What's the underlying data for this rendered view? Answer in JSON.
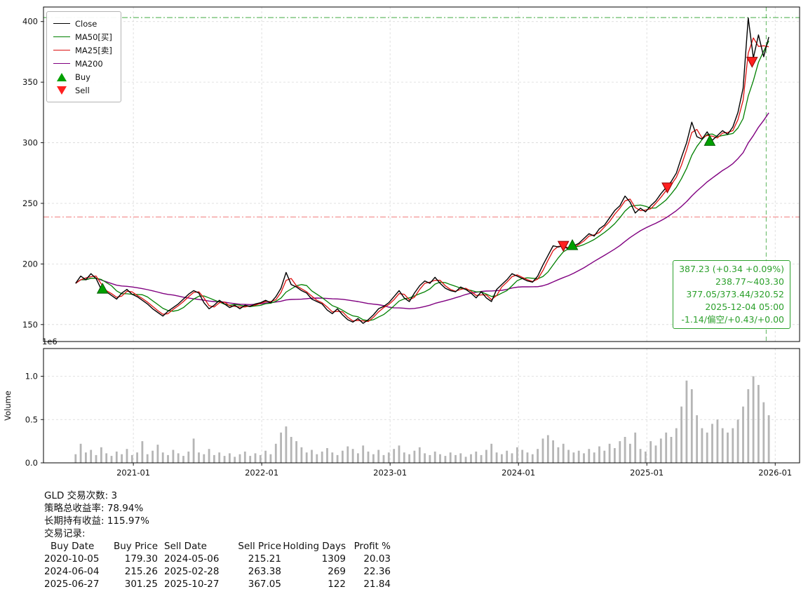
{
  "chart_data": {
    "type": "line",
    "title": "",
    "xlim": [
      2020.3,
      2026.19
    ],
    "xticks": [
      {
        "x": 2021.0,
        "label": "2021-01"
      },
      {
        "x": 2022.0,
        "label": "2022-01"
      },
      {
        "x": 2023.0,
        "label": "2023-01"
      },
      {
        "x": 2024.0,
        "label": "2024-01"
      },
      {
        "x": 2025.0,
        "label": "2025-01"
      },
      {
        "x": 2026.0,
        "label": "2026-01"
      }
    ],
    "price_panel": {
      "ylim": [
        136,
        412
      ],
      "yticks": [
        150,
        200,
        250,
        300,
        350,
        400
      ],
      "hlines": [
        {
          "value": 403.3,
          "color": "rgba(44,160,44,0.8)",
          "dash": "8 3 2 3"
        },
        {
          "value": 238.77,
          "color": "rgba(235,70,70,0.7)",
          "dash": "8 3 2 3"
        }
      ],
      "vline": {
        "x": 2025.93,
        "color": "rgba(44,160,44,0.7)",
        "dash": "6 4"
      }
    },
    "volume_panel": {
      "ylim": [
        0,
        1.32
      ],
      "yticks": [
        0.0,
        0.5,
        1.0
      ],
      "ylabel": "Volume",
      "offset_label": "1e6"
    },
    "colors": {
      "close": "#000000",
      "ma50": "#008000",
      "ma25": "#dd1111",
      "ma200": "#800080",
      "buy": "#00a000",
      "sell": "#ff2020"
    },
    "smoothing_windows": {
      "ma25": 2,
      "ma50": 5,
      "ma200": 20
    },
    "x": [
      2020.55,
      2020.59,
      2020.63,
      2020.67,
      2020.71,
      2020.75,
      2020.79,
      2020.83,
      2020.87,
      2020.91,
      2020.95,
      2020.99,
      2021.03,
      2021.07,
      2021.11,
      2021.15,
      2021.19,
      2021.23,
      2021.27,
      2021.31,
      2021.35,
      2021.39,
      2021.43,
      2021.47,
      2021.51,
      2021.55,
      2021.59,
      2021.63,
      2021.67,
      2021.71,
      2021.75,
      2021.79,
      2021.83,
      2021.87,
      2021.91,
      2021.95,
      2021.99,
      2022.03,
      2022.07,
      2022.11,
      2022.15,
      2022.19,
      2022.23,
      2022.27,
      2022.31,
      2022.35,
      2022.39,
      2022.43,
      2022.47,
      2022.51,
      2022.55,
      2022.59,
      2022.63,
      2022.67,
      2022.71,
      2022.75,
      2022.79,
      2022.83,
      2022.87,
      2022.91,
      2022.95,
      2022.99,
      2023.03,
      2023.07,
      2023.11,
      2023.15,
      2023.19,
      2023.23,
      2023.27,
      2023.31,
      2023.35,
      2023.39,
      2023.43,
      2023.47,
      2023.51,
      2023.55,
      2023.59,
      2023.63,
      2023.67,
      2023.71,
      2023.75,
      2023.79,
      2023.83,
      2023.87,
      2023.91,
      2023.95,
      2023.99,
      2024.03,
      2024.07,
      2024.11,
      2024.15,
      2024.19,
      2024.23,
      2024.27,
      2024.31,
      2024.35,
      2024.39,
      2024.43,
      2024.47,
      2024.51,
      2024.55,
      2024.59,
      2024.63,
      2024.67,
      2024.71,
      2024.75,
      2024.79,
      2024.83,
      2024.87,
      2024.91,
      2024.95,
      2024.99,
      2025.03,
      2025.07,
      2025.11,
      2025.15,
      2025.19,
      2025.23,
      2025.27,
      2025.31,
      2025.35,
      2025.39,
      2025.43,
      2025.47,
      2025.51,
      2025.55,
      2025.59,
      2025.63,
      2025.67,
      2025.71,
      2025.75,
      2025.79,
      2025.83,
      2025.87,
      2025.91,
      2025.95
    ],
    "close": [
      184,
      190,
      187,
      192,
      188,
      179,
      177,
      174,
      171,
      176,
      179,
      175,
      173,
      170,
      167,
      163,
      160,
      157,
      161,
      164,
      167,
      171,
      175,
      178,
      176,
      168,
      163,
      166,
      170,
      167,
      164,
      166,
      163,
      166,
      165,
      167,
      168,
      170,
      168,
      173,
      180,
      193,
      183,
      181,
      178,
      176,
      171,
      169,
      167,
      162,
      159,
      163,
      158,
      154,
      152,
      155,
      151,
      154,
      158,
      163,
      165,
      168,
      173,
      178,
      172,
      169,
      176,
      182,
      186,
      184,
      189,
      184,
      180,
      178,
      177,
      181,
      179,
      176,
      172,
      177,
      172,
      169,
      179,
      183,
      187,
      192,
      190,
      188,
      186,
      185,
      190,
      199,
      207,
      215,
      214,
      215,
      212,
      215,
      217,
      221,
      225,
      223,
      229,
      232,
      238,
      244,
      248,
      256,
      251,
      242,
      246,
      243,
      248,
      252,
      258,
      263,
      268,
      275,
      288,
      300,
      317,
      305,
      303,
      309,
      302,
      306,
      310,
      307,
      313,
      325,
      345,
      403,
      370,
      389,
      371,
      387.23
    ],
    "volume": [
      0.1,
      0.22,
      0.12,
      0.15,
      0.09,
      0.18,
      0.11,
      0.08,
      0.13,
      0.1,
      0.16,
      0.09,
      0.12,
      0.25,
      0.1,
      0.14,
      0.21,
      0.12,
      0.09,
      0.15,
      0.11,
      0.08,
      0.13,
      0.28,
      0.12,
      0.1,
      0.16,
      0.09,
      0.12,
      0.08,
      0.11,
      0.07,
      0.1,
      0.13,
      0.08,
      0.11,
      0.09,
      0.14,
      0.1,
      0.22,
      0.35,
      0.42,
      0.3,
      0.25,
      0.18,
      0.12,
      0.15,
      0.1,
      0.13,
      0.17,
      0.12,
      0.09,
      0.14,
      0.19,
      0.16,
      0.11,
      0.2,
      0.13,
      0.1,
      0.15,
      0.09,
      0.12,
      0.16,
      0.2,
      0.12,
      0.1,
      0.14,
      0.18,
      0.11,
      0.09,
      0.13,
      0.1,
      0.08,
      0.12,
      0.09,
      0.11,
      0.07,
      0.1,
      0.13,
      0.09,
      0.15,
      0.22,
      0.12,
      0.1,
      0.14,
      0.11,
      0.18,
      0.15,
      0.12,
      0.1,
      0.16,
      0.28,
      0.32,
      0.26,
      0.18,
      0.22,
      0.15,
      0.12,
      0.14,
      0.11,
      0.16,
      0.12,
      0.19,
      0.14,
      0.22,
      0.17,
      0.25,
      0.3,
      0.22,
      0.35,
      0.16,
      0.13,
      0.25,
      0.2,
      0.28,
      0.35,
      0.3,
      0.4,
      0.65,
      0.95,
      0.85,
      0.55,
      0.4,
      0.35,
      0.45,
      0.5,
      0.4,
      0.35,
      0.4,
      0.5,
      0.65,
      0.85,
      1.0,
      0.9,
      0.7,
      0.55
    ],
    "buy_markers": [
      {
        "x": 2020.76,
        "y": 179.3,
        "date": "2020-10-05"
      },
      {
        "x": 2024.42,
        "y": 215.26,
        "date": "2024-06-04"
      },
      {
        "x": 2025.49,
        "y": 301.25,
        "date": "2025-06-27"
      }
    ],
    "sell_markers": [
      {
        "x": 2024.35,
        "y": 215.21,
        "date": "2024-05-06"
      },
      {
        "x": 2025.16,
        "y": 263.38,
        "date": "2025-02-28"
      },
      {
        "x": 2025.82,
        "y": 367.05,
        "date": "2025-10-27"
      }
    ]
  },
  "legend": {
    "items": [
      {
        "label": "Close",
        "type": "line",
        "color": "#000000"
      },
      {
        "label": "MA50[买]",
        "type": "line",
        "color": "#008000"
      },
      {
        "label": "MA25[卖]",
        "type": "line",
        "color": "#dd1111"
      },
      {
        "label": "MA200",
        "type": "line",
        "color": "#800080"
      },
      {
        "label": "Buy",
        "type": "triangle-up",
        "color": "#00a000"
      },
      {
        "label": "Sell",
        "type": "triangle-down",
        "color": "#ff2020"
      }
    ]
  },
  "annotation": {
    "color": "#2ca02c",
    "lines": [
      "387.23 (+0.34 +0.09%)",
      "238.77~403.30",
      "377.05/373.44/320.52",
      "2025-12-04 05:00",
      "-1.14/偏空/+0.43/+0.00"
    ]
  },
  "footer": {
    "lines": [
      "GLD 交易次数: 3",
      "策略总收益率: 78.94%",
      "长期持有收益: 115.97%",
      "交易记录:"
    ],
    "table": {
      "headers": [
        "Buy Date",
        "Buy Price",
        "Sell Date",
        "Sell Price",
        "Holding Days",
        "Profit %"
      ],
      "rows": [
        [
          "2020-10-05",
          "179.30",
          "2024-05-06",
          "215.21",
          "1309",
          "20.03"
        ],
        [
          "2024-06-04",
          "215.26",
          "2025-02-28",
          "263.38",
          "269",
          "22.36"
        ],
        [
          "2025-06-27",
          "301.25",
          "2025-10-27",
          "367.05",
          "122",
          "21.84"
        ]
      ]
    }
  }
}
